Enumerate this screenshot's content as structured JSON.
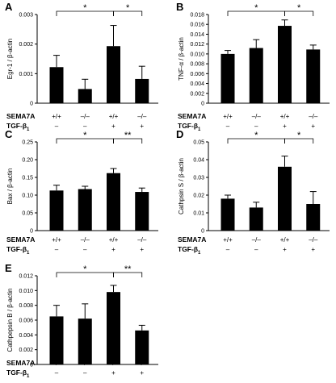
{
  "figure": {
    "condition_titles": [
      "SEMA7A",
      "TGF-β1"
    ],
    "sema7a_values": [
      "+/+",
      "–/–",
      "+/+",
      "–/–"
    ],
    "tgf_values": [
      "–",
      "–",
      "+",
      "+"
    ]
  },
  "chart_data": [
    {
      "panel": "A",
      "type": "bar",
      "ylabel": "Egr-1 / β-actin",
      "categories": [
        "+/+ –",
        "–/– –",
        "+/+ +",
        "–/– +"
      ],
      "values": [
        0.00122,
        0.00048,
        0.00193,
        0.00082
      ],
      "errors": [
        0.0004,
        0.00033,
        0.0007,
        0.00043
      ],
      "ylim": [
        0,
        0.003
      ],
      "yticks": [
        "0",
        "0.001",
        "0.002",
        "0.003"
      ],
      "brackets": [
        {
          "from": 0,
          "to": 2,
          "label": "*"
        },
        {
          "from": 2,
          "to": 3,
          "label": "*"
        }
      ]
    },
    {
      "panel": "B",
      "type": "bar",
      "ylabel": "TNF-α / β-actin",
      "categories": [
        "+/+ –",
        "–/– –",
        "+/+ +",
        "–/– +"
      ],
      "values": [
        0.01,
        0.0112,
        0.0157,
        0.0109
      ],
      "errors": [
        0.0007,
        0.0017,
        0.0012,
        0.0009
      ],
      "ylim": [
        0,
        0.018
      ],
      "yticks": [
        "0",
        "0.002",
        "0.004",
        "0.006",
        "0.008",
        "0.010",
        "0.012",
        "0.014",
        "0.016",
        "0.018"
      ],
      "brackets": [
        {
          "from": 0,
          "to": 2,
          "label": "*"
        },
        {
          "from": 2,
          "to": 3,
          "label": "*"
        }
      ]
    },
    {
      "panel": "C",
      "type": "bar",
      "ylabel": "Bax / β-actin",
      "categories": [
        "+/+ –",
        "–/– –",
        "+/+ +",
        "–/– +"
      ],
      "values": [
        0.113,
        0.117,
        0.162,
        0.109
      ],
      "errors": [
        0.015,
        0.008,
        0.013,
        0.011
      ],
      "ylim": [
        0,
        0.25
      ],
      "yticks": [
        "0",
        "0.05",
        "0.10",
        "0.15",
        "0.20",
        "0.25"
      ],
      "brackets": [
        {
          "from": 0,
          "to": 2,
          "label": "*"
        },
        {
          "from": 2,
          "to": 3,
          "label": "**"
        }
      ]
    },
    {
      "panel": "D",
      "type": "bar",
      "ylabel": "Cathpsin S / β-actin",
      "categories": [
        "+/+ –",
        "–/– –",
        "+/+ +",
        "–/– +"
      ],
      "values": [
        0.018,
        0.013,
        0.036,
        0.015
      ],
      "errors": [
        0.002,
        0.003,
        0.006,
        0.007
      ],
      "ylim": [
        0,
        0.05
      ],
      "yticks": [
        "0",
        "0.01",
        "0.02",
        "0.03",
        "0.04",
        "0.05"
      ],
      "brackets": [
        {
          "from": 0,
          "to": 2,
          "label": "*"
        },
        {
          "from": 2,
          "to": 3,
          "label": "*"
        }
      ]
    },
    {
      "panel": "E",
      "type": "bar",
      "ylabel": "Cathpepsin B / β-actin",
      "categories": [
        "+/+ –",
        "–/– –",
        "+/+ +",
        "–/– +"
      ],
      "values": [
        0.0065,
        0.0062,
        0.0098,
        0.0046
      ],
      "errors": [
        0.0015,
        0.002,
        0.0009,
        0.0007
      ],
      "ylim": [
        0,
        0.012
      ],
      "yticks": [
        "0",
        "0.002",
        "0.004",
        "0.006",
        "0.008",
        "0.010",
        "0.012"
      ],
      "brackets": [
        {
          "from": 0,
          "to": 2,
          "label": "*"
        },
        {
          "from": 2,
          "to": 3,
          "label": "**"
        }
      ]
    }
  ]
}
